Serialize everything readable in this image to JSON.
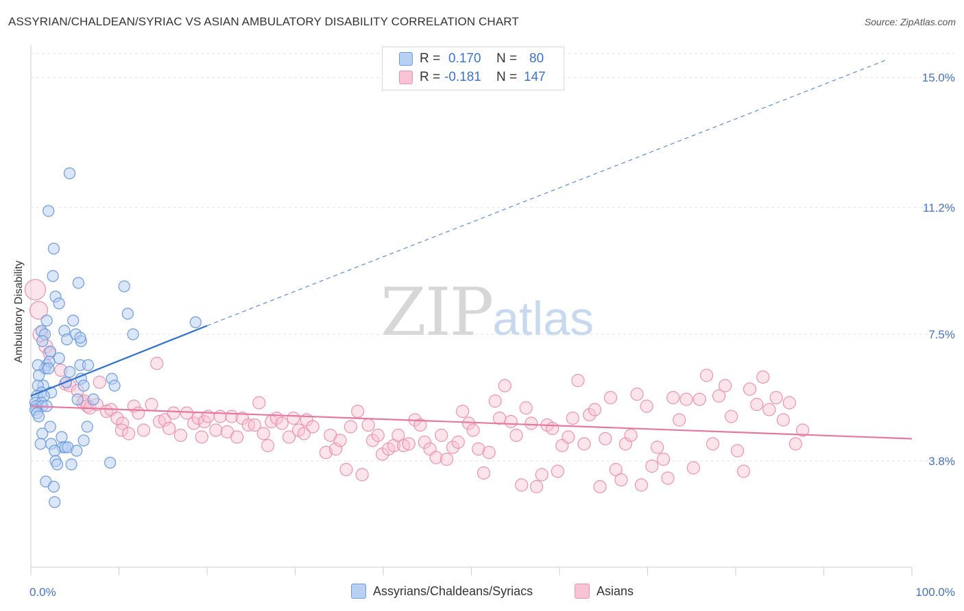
{
  "title": "ASSYRIAN/CHALDEAN/SYRIAC VS ASIAN AMBULATORY DISABILITY CORRELATION CHART",
  "source": "Source: ZipAtlas.com",
  "watermark": {
    "zip": "ZIP",
    "atlas": "atlas"
  },
  "legend": {
    "r_label": "R =",
    "n_label": "N =",
    "series": [
      {
        "name": "Assyrians/Chaldeans/Syriacs",
        "r": "0.170",
        "n": "80",
        "fill": "#b8d0f2",
        "stroke": "#6b9be0"
      },
      {
        "name": "Asians",
        "r": "-0.181",
        "n": "147",
        "fill": "#f8c4d3",
        "stroke": "#ee90ad"
      }
    ]
  },
  "colors": {
    "blue_line": "#2c6fd0",
    "pink_line": "#e8779f",
    "tick_text": "#4472c4",
    "grid": "#e3e3e3"
  },
  "chart_data": {
    "type": "scatter",
    "title": "ASSYRIAN/CHALDEAN/SYRIAC VS ASIAN AMBULATORY DISABILITY CORRELATION CHART",
    "xlabel": "",
    "ylabel": "Ambulatory Disability",
    "xlim": [
      0,
      100
    ],
    "ylim": [
      0.7,
      15.7
    ],
    "x_ticks": [
      0,
      10,
      20,
      30,
      40,
      50,
      60,
      70,
      80,
      90,
      100
    ],
    "x_tick_labels": {
      "start": "0.0%",
      "end": "100.0%"
    },
    "y_ticks": [
      3.8,
      7.5,
      11.2,
      15.0
    ],
    "y_tick_labels": [
      "3.8%",
      "7.5%",
      "11.2%",
      "15.0%"
    ],
    "grid": true,
    "legend_placement": "top-center",
    "series": [
      {
        "name": "Assyrians/Chaldeans/Syriacs",
        "trend": {
          "x": [
            0,
            20
          ],
          "y": [
            5.7,
            7.75
          ],
          "dashed_extension_to": [
            97,
            15.5
          ]
        },
        "points": [
          [
            4.4,
            12.2
          ],
          [
            2.0,
            11.1
          ],
          [
            2.6,
            10.0
          ],
          [
            2.5,
            9.2
          ],
          [
            5.4,
            9.0
          ],
          [
            10.6,
            8.9
          ],
          [
            2.8,
            8.6
          ],
          [
            3.2,
            8.4
          ],
          [
            11.0,
            8.1
          ],
          [
            1.8,
            7.9
          ],
          [
            4.8,
            7.9
          ],
          [
            18.7,
            7.85
          ],
          [
            1.2,
            7.6
          ],
          [
            3.8,
            7.6
          ],
          [
            5.1,
            7.5
          ],
          [
            11.6,
            7.5
          ],
          [
            1.6,
            7.5
          ],
          [
            4.1,
            7.35
          ],
          [
            5.7,
            7.3
          ],
          [
            5.6,
            7.4
          ],
          [
            1.3,
            7.3
          ],
          [
            2.2,
            7.0
          ],
          [
            3.2,
            6.8
          ],
          [
            1.8,
            6.6
          ],
          [
            2.1,
            6.7
          ],
          [
            5.6,
            6.6
          ],
          [
            6.5,
            6.6
          ],
          [
            1.6,
            6.5
          ],
          [
            0.8,
            6.6
          ],
          [
            2.0,
            6.5
          ],
          [
            4.4,
            6.4
          ],
          [
            0.9,
            6.3
          ],
          [
            5.7,
            6.2
          ],
          [
            9.2,
            6.2
          ],
          [
            1.4,
            6.0
          ],
          [
            4.0,
            6.1
          ],
          [
            6.0,
            6.0
          ],
          [
            9.5,
            6.0
          ],
          [
            0.8,
            6.0
          ],
          [
            1.2,
            5.8
          ],
          [
            2.3,
            5.8
          ],
          [
            0.7,
            5.7
          ],
          [
            1.5,
            5.7
          ],
          [
            5.3,
            5.6
          ],
          [
            7.1,
            5.6
          ],
          [
            0.5,
            5.5
          ],
          [
            1.2,
            5.5
          ],
          [
            0.6,
            5.4
          ],
          [
            1.3,
            5.4
          ],
          [
            1.8,
            5.4
          ],
          [
            0.5,
            5.3
          ],
          [
            0.7,
            5.2
          ],
          [
            0.9,
            5.1
          ],
          [
            6.4,
            4.8
          ],
          [
            2.2,
            4.8
          ],
          [
            1.3,
            4.6
          ],
          [
            3.5,
            4.5
          ],
          [
            1.1,
            4.3
          ],
          [
            6.0,
            4.4
          ],
          [
            2.3,
            4.3
          ],
          [
            3.6,
            4.2
          ],
          [
            3.9,
            4.2
          ],
          [
            4.2,
            4.2
          ],
          [
            2.7,
            4.1
          ],
          [
            5.2,
            4.1
          ],
          [
            2.8,
            3.8
          ],
          [
            3.0,
            3.7
          ],
          [
            4.6,
            3.7
          ],
          [
            9.0,
            3.75
          ],
          [
            1.7,
            3.2
          ],
          [
            2.6,
            3.05
          ],
          [
            2.7,
            2.6
          ]
        ]
      },
      {
        "name": "Asians",
        "trend": {
          "x": [
            0,
            100
          ],
          "y": [
            5.4,
            4.45
          ]
        },
        "points": [
          [
            0.5,
            8.8
          ],
          [
            0.9,
            8.2
          ],
          [
            1.1,
            7.5
          ],
          [
            1.7,
            7.15
          ],
          [
            2.1,
            6.95
          ],
          [
            3.4,
            6.45
          ],
          [
            3.9,
            6.05
          ],
          [
            4.4,
            6.0
          ],
          [
            14.3,
            6.65
          ],
          [
            7.8,
            6.1
          ],
          [
            5.3,
            5.85
          ],
          [
            5.9,
            5.5
          ],
          [
            6.1,
            5.55
          ],
          [
            6.4,
            5.4
          ],
          [
            6.7,
            5.35
          ],
          [
            7.5,
            5.45
          ],
          [
            8.6,
            5.25
          ],
          [
            9.1,
            5.3
          ],
          [
            9.8,
            5.05
          ],
          [
            10.4,
            4.9
          ],
          [
            10.3,
            4.7
          ],
          [
            11.1,
            4.6
          ],
          [
            11.7,
            5.4
          ],
          [
            12.2,
            5.2
          ],
          [
            12.8,
            4.7
          ],
          [
            13.7,
            5.45
          ],
          [
            14.6,
            4.95
          ],
          [
            15.2,
            5.0
          ],
          [
            15.7,
            4.75
          ],
          [
            16.2,
            5.2
          ],
          [
            17.0,
            4.55
          ],
          [
            17.7,
            5.2
          ],
          [
            18.5,
            4.9
          ],
          [
            19.0,
            5.05
          ],
          [
            19.4,
            4.5
          ],
          [
            19.7,
            4.95
          ],
          [
            20.1,
            5.1
          ],
          [
            21.0,
            4.7
          ],
          [
            21.5,
            5.1
          ],
          [
            22.3,
            4.65
          ],
          [
            22.8,
            5.1
          ],
          [
            23.4,
            4.5
          ],
          [
            24.0,
            5.05
          ],
          [
            24.7,
            4.85
          ],
          [
            25.4,
            4.85
          ],
          [
            25.9,
            5.5
          ],
          [
            26.4,
            4.6
          ],
          [
            26.9,
            4.25
          ],
          [
            27.3,
            4.95
          ],
          [
            27.9,
            5.05
          ],
          [
            28.5,
            4.9
          ],
          [
            29.3,
            4.5
          ],
          [
            29.8,
            5.05
          ],
          [
            30.4,
            4.7
          ],
          [
            31.0,
            4.6
          ],
          [
            31.3,
            5.0
          ],
          [
            32.0,
            4.8
          ],
          [
            33.5,
            4.05
          ],
          [
            34.0,
            4.55
          ],
          [
            34.6,
            4.15
          ],
          [
            35.1,
            4.4
          ],
          [
            35.8,
            3.55
          ],
          [
            36.3,
            4.8
          ],
          [
            37.1,
            5.25
          ],
          [
            37.6,
            3.4
          ],
          [
            38.3,
            4.85
          ],
          [
            38.8,
            4.4
          ],
          [
            39.4,
            4.55
          ],
          [
            39.9,
            4.0
          ],
          [
            40.6,
            4.15
          ],
          [
            41.2,
            4.25
          ],
          [
            41.7,
            4.55
          ],
          [
            42.3,
            4.25
          ],
          [
            42.9,
            4.3
          ],
          [
            43.6,
            5.0
          ],
          [
            44.2,
            4.85
          ],
          [
            44.7,
            4.35
          ],
          [
            45.3,
            4.15
          ],
          [
            46.0,
            3.9
          ],
          [
            46.6,
            4.55
          ],
          [
            47.2,
            3.85
          ],
          [
            47.9,
            4.2
          ],
          [
            48.5,
            4.35
          ],
          [
            49.0,
            5.25
          ],
          [
            49.7,
            4.9
          ],
          [
            50.2,
            4.7
          ],
          [
            50.8,
            4.15
          ],
          [
            51.4,
            3.45
          ],
          [
            52.0,
            4.05
          ],
          [
            52.7,
            5.55
          ],
          [
            53.2,
            5.05
          ],
          [
            53.8,
            6.0
          ],
          [
            54.5,
            4.95
          ],
          [
            55.1,
            4.55
          ],
          [
            55.7,
            3.1
          ],
          [
            56.2,
            5.35
          ],
          [
            56.8,
            4.9
          ],
          [
            57.4,
            3.05
          ],
          [
            58.0,
            3.4
          ],
          [
            58.6,
            4.85
          ],
          [
            59.2,
            4.75
          ],
          [
            59.8,
            3.5
          ],
          [
            60.3,
            4.25
          ],
          [
            61.0,
            4.5
          ],
          [
            61.5,
            5.05
          ],
          [
            62.1,
            6.15
          ],
          [
            62.8,
            4.3
          ],
          [
            63.4,
            5.15
          ],
          [
            64.0,
            5.3
          ],
          [
            64.6,
            3.05
          ],
          [
            65.2,
            4.45
          ],
          [
            65.8,
            5.65
          ],
          [
            66.4,
            3.55
          ],
          [
            67.0,
            3.25
          ],
          [
            67.5,
            4.3
          ],
          [
            68.1,
            4.55
          ],
          [
            68.8,
            5.75
          ],
          [
            69.3,
            3.1
          ],
          [
            69.9,
            5.4
          ],
          [
            70.5,
            3.65
          ],
          [
            71.1,
            4.2
          ],
          [
            71.8,
            3.85
          ],
          [
            72.3,
            3.3
          ],
          [
            72.9,
            5.65
          ],
          [
            73.6,
            5.0
          ],
          [
            74.4,
            5.6
          ],
          [
            75.2,
            3.6
          ],
          [
            75.9,
            5.6
          ],
          [
            76.7,
            6.3
          ],
          [
            77.4,
            4.3
          ],
          [
            78.1,
            5.7
          ],
          [
            78.8,
            6.0
          ],
          [
            79.5,
            5.1
          ],
          [
            80.2,
            4.1
          ],
          [
            80.9,
            3.5
          ],
          [
            81.6,
            5.9
          ],
          [
            82.4,
            5.45
          ],
          [
            83.1,
            6.25
          ],
          [
            83.8,
            5.3
          ],
          [
            84.6,
            5.65
          ],
          [
            85.4,
            5.0
          ],
          [
            86.1,
            5.5
          ],
          [
            86.8,
            4.3
          ],
          [
            87.6,
            4.7
          ]
        ]
      }
    ]
  }
}
